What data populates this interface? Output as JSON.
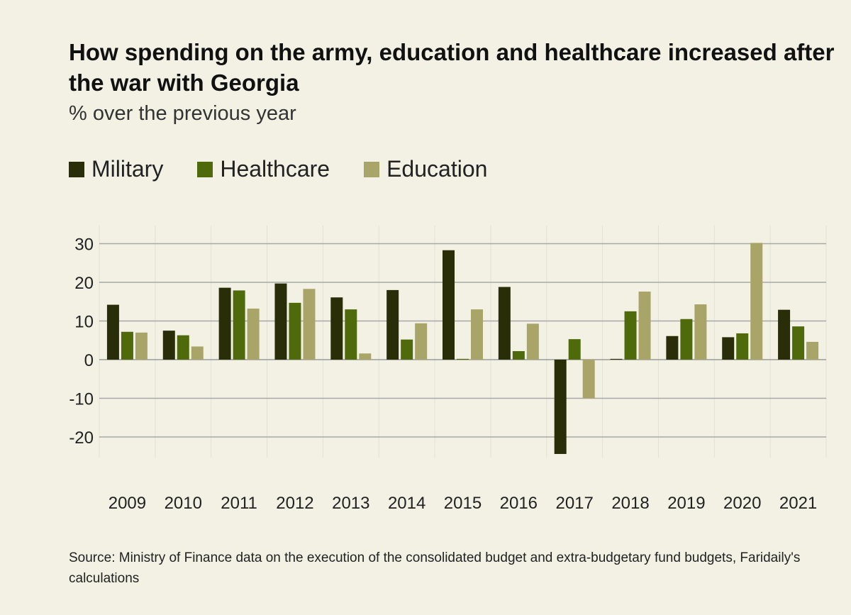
{
  "chart_data": {
    "type": "bar",
    "title": "How spending on the army, education and healthcare increased after the war with Georgia",
    "subtitle": "% over the previous year",
    "categories": [
      "2009",
      "2010",
      "2011",
      "2012",
      "2013",
      "2014",
      "2015",
      "2016",
      "2017",
      "2018",
      "2019",
      "2020",
      "2021"
    ],
    "series": [
      {
        "name": "Military",
        "color": "#2a2e08",
        "values": [
          14.2,
          7.5,
          18.6,
          19.7,
          16.1,
          18.0,
          28.3,
          18.8,
          -24.4,
          0.2,
          6.1,
          5.8,
          12.9
        ]
      },
      {
        "name": "Healthcare",
        "color": "#4e6a0b",
        "values": [
          7.2,
          6.3,
          17.9,
          14.7,
          13.0,
          5.2,
          0.2,
          2.2,
          5.3,
          12.5,
          10.5,
          6.8,
          8.6
        ]
      },
      {
        "name": "Education",
        "color": "#a9a467",
        "values": [
          7.0,
          3.4,
          13.2,
          18.3,
          1.6,
          9.4,
          13.0,
          9.3,
          -10.0,
          17.6,
          14.3,
          30.2,
          4.6
        ]
      }
    ],
    "yticks": [
      30,
      20,
      10,
      0,
      -10,
      -20
    ],
    "ylim": [
      -25,
      30
    ],
    "grid": true,
    "legend": "top-left"
  },
  "source": "Source: Ministry of Finance data on the execution of the consolidated budget and extra-budgetary fund budgets, Faridaily's calculations"
}
